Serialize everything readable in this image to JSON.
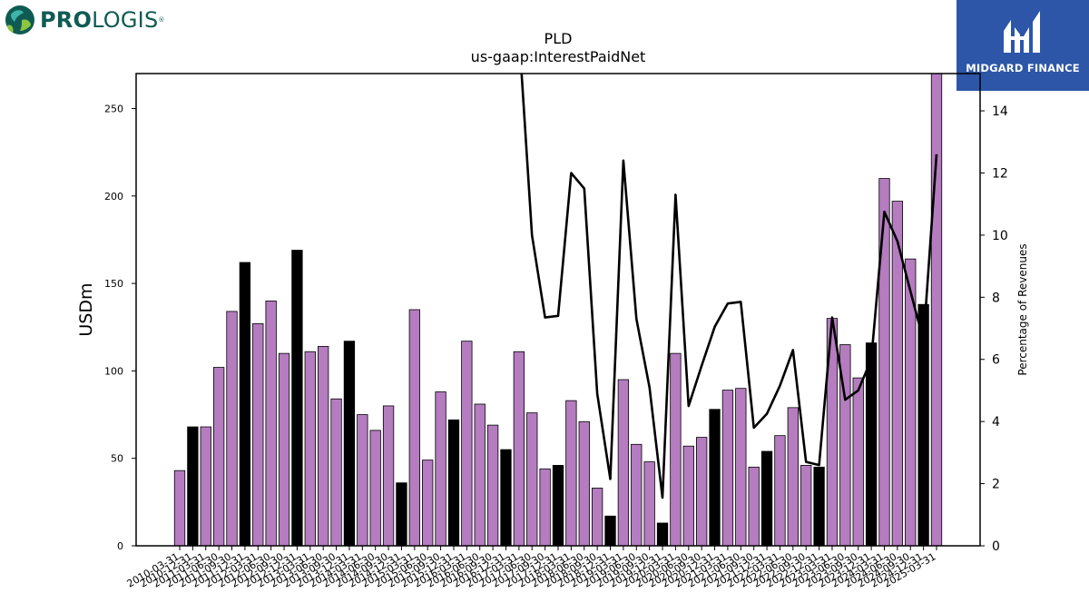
{
  "brand": {
    "company_logo": "prologis-logo",
    "company_name_bold": "PRO",
    "company_name_light": "LOGIS",
    "registered_mark": "®",
    "publisher_logo": "midgard-finance-logo",
    "publisher_name": "MIDGARD FINANCE"
  },
  "colors": {
    "bar_fill": "#b57cc0",
    "bar_highlight": "#000000",
    "line": "#000000",
    "prologis_green": "#0f5b54",
    "midgard_blue": "#2d56a8"
  },
  "chart_data": {
    "type": "bar",
    "title": "PLD",
    "subtitle": "us-gaap:InterestPaidNet",
    "ylabel": "USDm",
    "y2label": "Percentage of Revenues",
    "ylim": [
      0,
      270
    ],
    "y2lim": [
      0,
      15.2
    ],
    "yticks": [
      0,
      50,
      100,
      150,
      200,
      250
    ],
    "y2ticks": [
      0,
      2,
      4,
      6,
      8,
      10,
      12,
      14
    ],
    "grid": false,
    "categories": [
      "2010-03-31",
      "2010-12-31",
      "2011-03-31",
      "2011-06-30",
      "2011-09-30",
      "2011-12-31",
      "2012-03-31",
      "2012-06-30",
      "2012-09-30",
      "2012-12-31",
      "2013-03-31",
      "2013-06-30",
      "2013-09-30",
      "2013-12-31",
      "2014-03-31",
      "2014-06-30",
      "2014-09-30",
      "2014-12-31",
      "2015-03-31",
      "2015-06-30",
      "2015-09-30",
      "2015-12-31",
      "2016-03-31",
      "2016-06-30",
      "2016-09-30",
      "2016-12-31",
      "2017-03-31",
      "2017-06-30",
      "2017-09-30",
      "2017-12-31",
      "2018-03-31",
      "2018-06-30",
      "2018-09-30",
      "2018-12-31",
      "2019-03-31",
      "2019-06-30",
      "2019-09-30",
      "2019-12-31",
      "2020-03-31",
      "2020-06-30",
      "2020-09-30",
      "2020-12-31",
      "2021-03-31",
      "2021-06-30",
      "2021-09-30",
      "2021-12-31",
      "2022-03-31",
      "2022-06-30",
      "2022-09-30",
      "2022-12-31",
      "2023-03-31",
      "2023-06-30",
      "2023-09-30",
      "2023-12-31",
      "2024-03-31",
      "2024-06-30",
      "2024-09-30",
      "2024-12-31",
      "2025-03-31"
    ],
    "xtick_labels": [
      "2010-03-31",
      "2010-12-31",
      "2011-03-31",
      "2011-06-30",
      "2011-09-30",
      "2011-12-31",
      "2012-03-31",
      "2012-06-30",
      "2012-09-30",
      "2012-12-31",
      "2013-03-31",
      "2013-06-30",
      "2013-09-30",
      "2013-12-31",
      "2014-03-31",
      "2014-06-30",
      "2014-09-30",
      "2014-12-31",
      "2015-03-31",
      "2015-06-30",
      "2015-09-30",
      "2015-12-31",
      "2016-03-31",
      "2016-06-30",
      "2016-09-30",
      "2016-12-31",
      "2017-03-31",
      "2017-06-30",
      "2017-09-30",
      "2017-12-31",
      "2018-03-31",
      "2018-06-30",
      "2018-09-30",
      "2018-12-31",
      "2019-03-31",
      "2019-06-30",
      "2019-09-30",
      "2019-12-31",
      "2020-03-31",
      "2020-06-30",
      "2020-09-30",
      "2020-12-31",
      "2021-03-31",
      "2021-06-30",
      "2021-09-30",
      "2021-12-31",
      "2022-03-31",
      "2022-06-30",
      "2022-09-30",
      "2022-12-31",
      "2023-03-31",
      "2023-06-30",
      "2023-09-30",
      "2023-12-31",
      "2024-03-31",
      "2024-06-30",
      "2024-09-30",
      "2024-12-31",
      "2025-03-31"
    ],
    "values": [
      43,
      68,
      68,
      102,
      134,
      162,
      127,
      140,
      110,
      169,
      111,
      114,
      84,
      117,
      75,
      66,
      80,
      36,
      135,
      49,
      88,
      72,
      117,
      81,
      69,
      55,
      111,
      76,
      44,
      46,
      83,
      71,
      33,
      17,
      95,
      58,
      48,
      13,
      110,
      57,
      62,
      78,
      89,
      90,
      45,
      54,
      63,
      79,
      46,
      45,
      130,
      115,
      96,
      116,
      210,
      197,
      164,
      138,
      270
    ],
    "highlight": [
      false,
      true,
      false,
      false,
      false,
      true,
      false,
      false,
      false,
      true,
      false,
      false,
      false,
      true,
      false,
      false,
      false,
      true,
      false,
      false,
      false,
      true,
      false,
      false,
      false,
      true,
      false,
      false,
      false,
      true,
      false,
      false,
      false,
      true,
      false,
      false,
      false,
      true,
      false,
      false,
      false,
      true,
      false,
      false,
      false,
      true,
      false,
      false,
      false,
      true,
      false,
      false,
      false,
      true,
      false,
      false,
      false,
      true,
      false
    ],
    "pct_of_revenues": [
      null,
      null,
      null,
      null,
      null,
      null,
      null,
      null,
      null,
      null,
      null,
      null,
      null,
      null,
      null,
      null,
      null,
      null,
      null,
      null,
      null,
      null,
      null,
      null,
      null,
      null,
      16.5,
      10.0,
      7.35,
      7.4,
      12.0,
      11.5,
      4.9,
      2.15,
      12.4,
      7.3,
      5.1,
      1.55,
      11.3,
      4.5,
      5.8,
      7.05,
      7.8,
      7.85,
      3.8,
      4.25,
      5.15,
      6.3,
      2.7,
      2.6,
      7.35,
      4.7,
      5.0,
      6.0,
      10.75,
      9.8,
      8.2,
      6.6,
      12.6
    ]
  }
}
